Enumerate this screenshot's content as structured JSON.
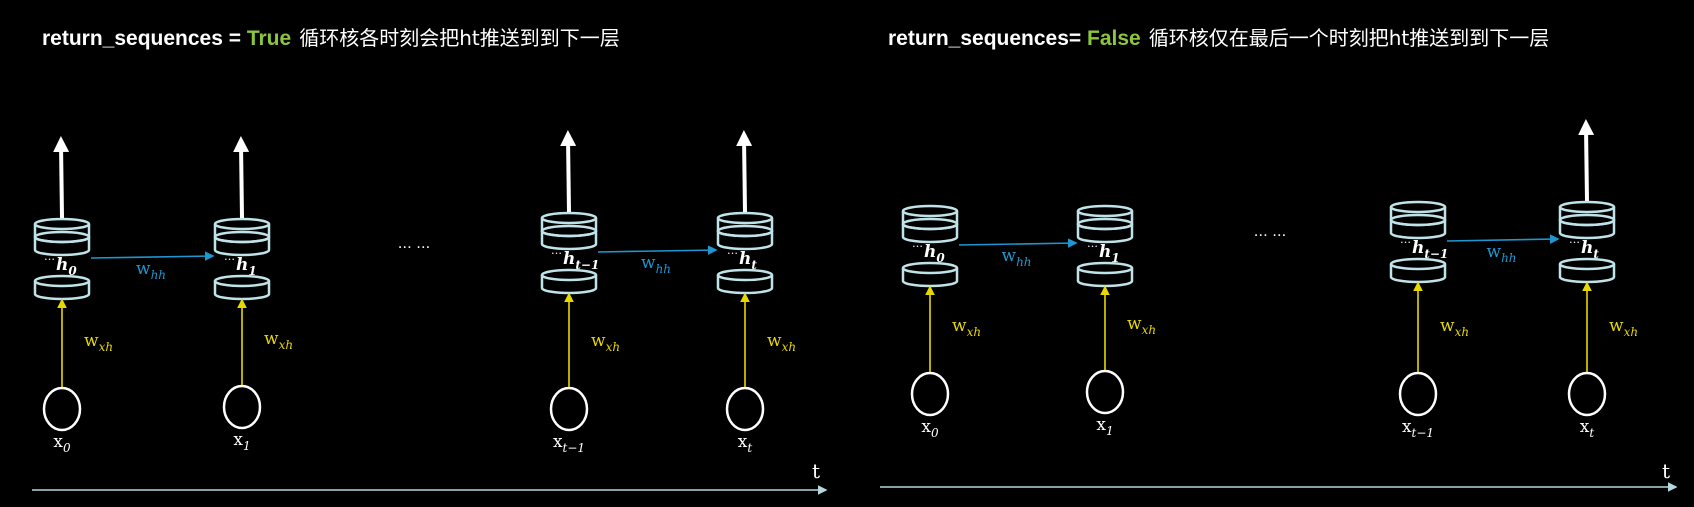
{
  "panels": [
    {
      "title_code": "return_sequences = ",
      "title_keyword": "True",
      "title_desc": "循环核各时刻会把ht推送到到下一层",
      "keyword_color": "#8cc63f",
      "ellipsis": "… …",
      "axis_label": "t",
      "units": [
        {
          "h": "h",
          "h_sub": "0",
          "x": "x",
          "x_sub": "0",
          "output": true
        },
        {
          "h": "h",
          "h_sub": "1",
          "x": "x",
          "x_sub": "1",
          "output": true
        },
        {
          "h": "h",
          "h_sub": "t−1",
          "x": "x",
          "x_sub": "t−1",
          "output": true
        },
        {
          "h": "h",
          "h_sub": "t",
          "x": "x",
          "x_sub": "t",
          "output": true
        }
      ],
      "recurrent_weight": {
        "w": "w",
        "sub": "hh"
      },
      "input_weight": {
        "w": "w",
        "sub": "xh"
      }
    },
    {
      "title_code": "return_sequences= ",
      "title_keyword": "False",
      "title_desc": "循环核仅在最后一个时刻把ht推送到到下一层",
      "keyword_color": "#8cc63f",
      "ellipsis": "… …",
      "axis_label": "t",
      "units": [
        {
          "h": "h",
          "h_sub": "0",
          "x": "x",
          "x_sub": "0",
          "output": false
        },
        {
          "h": "h",
          "h_sub": "1",
          "x": "x",
          "x_sub": "1",
          "output": false
        },
        {
          "h": "h",
          "h_sub": "t−1",
          "x": "x",
          "x_sub": "t−1",
          "output": false
        },
        {
          "h": "h",
          "h_sub": "t",
          "x": "x",
          "x_sub": "t",
          "output": true
        }
      ],
      "recurrent_weight": {
        "w": "w",
        "sub": "hh"
      },
      "input_weight": {
        "w": "w",
        "sub": "xh"
      }
    }
  ]
}
